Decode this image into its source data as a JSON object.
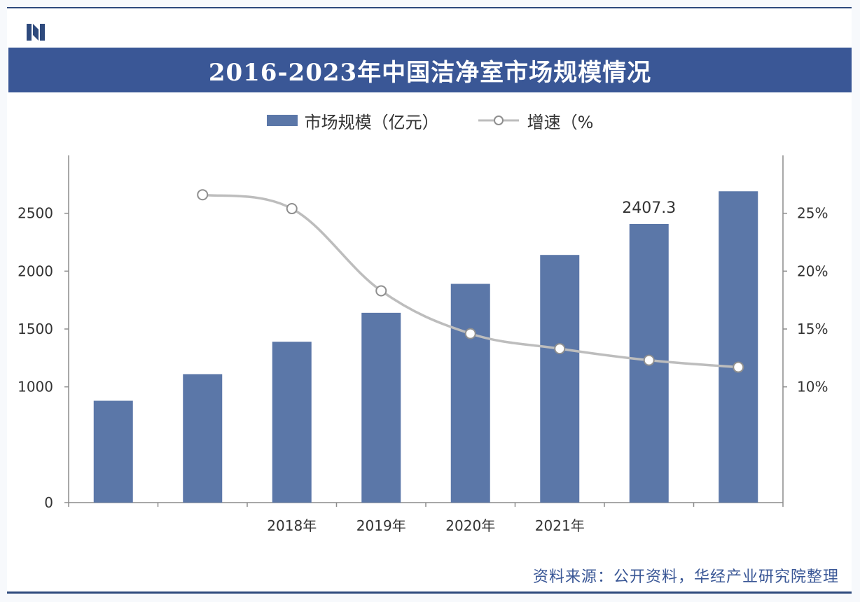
{
  "title": "2016-2023年中国洁净室市场规模情况",
  "legend": {
    "bar_label": "市场规模（亿元）",
    "line_label": "增速（%"
  },
  "source": "资料来源：公开资料，华经产业研究院整理",
  "colors": {
    "bar": "#5b77a8",
    "line": "#bdbdbd",
    "title_bg": "#3a5796"
  },
  "chart_data": {
    "type": "bar",
    "categories": [
      "",
      "",
      "2018年",
      "2019年",
      "2020年",
      "2021年",
      "",
      ""
    ],
    "series": [
      {
        "name": "市场规模（亿元）",
        "type": "bar",
        "axis": "left",
        "values": [
          880,
          1110,
          1390,
          1640,
          1890,
          2140,
          2407.3,
          2690
        ]
      },
      {
        "name": "增速（%",
        "type": "line",
        "axis": "right",
        "values": [
          null,
          26.6,
          25.4,
          18.3,
          14.6,
          13.3,
          12.3,
          11.7
        ]
      }
    ],
    "data_labels": [
      {
        "index": 6,
        "text": "2407.3"
      }
    ],
    "yleft": {
      "ticks": [
        "0",
        "1000",
        "1500",
        "2000",
        "2500"
      ],
      "ylim": [
        0,
        3000
      ]
    },
    "yright": {
      "ticks": [
        "10%",
        "15%",
        "20%",
        "25%"
      ],
      "ylim": [
        0,
        30
      ]
    }
  }
}
